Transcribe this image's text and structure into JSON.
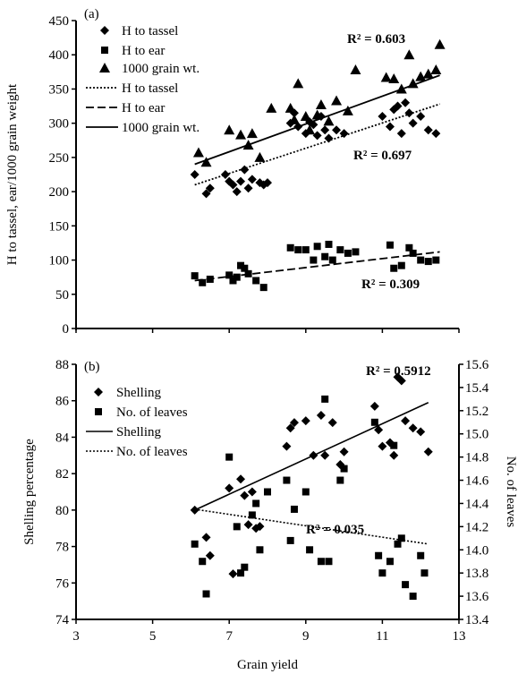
{
  "chart_data": [
    {
      "panel": "(a)",
      "type": "scatter",
      "ylabel": "H to tassel, ear/1000 grain weight",
      "xlim": [
        3,
        13
      ],
      "ylim": [
        0,
        450
      ],
      "yticks": [
        0,
        50,
        100,
        150,
        200,
        250,
        300,
        350,
        400,
        450
      ],
      "legend": [
        "H to tassel",
        "H to ear",
        "1000 grain wt.",
        "H to tassel",
        "H to ear",
        "1000 grain wt."
      ],
      "annotations": [
        "R² = 0.603",
        "R² = 0.697",
        "R² = 0.309"
      ],
      "series": [
        {
          "name": "H to tassel",
          "marker": "diamond",
          "points": [
            [
              6.1,
              225
            ],
            [
              6.4,
              197
            ],
            [
              6.5,
              205
            ],
            [
              6.9,
              225
            ],
            [
              7.0,
              215
            ],
            [
              7.1,
              210
            ],
            [
              7.2,
              200
            ],
            [
              7.3,
              215
            ],
            [
              7.4,
              232
            ],
            [
              7.5,
              205
            ],
            [
              7.6,
              218
            ],
            [
              7.8,
              213
            ],
            [
              7.9,
              210
            ],
            [
              8.0,
              213
            ],
            [
              8.6,
              300
            ],
            [
              8.7,
              315
            ],
            [
              8.8,
              295
            ],
            [
              9.0,
              285
            ],
            [
              9.1,
              302
            ],
            [
              9.2,
              298
            ],
            [
              9.3,
              282
            ],
            [
              9.4,
              310
            ],
            [
              9.5,
              290
            ],
            [
              9.6,
              278
            ],
            [
              9.8,
              290
            ],
            [
              10.0,
              285
            ],
            [
              11.0,
              310
            ],
            [
              11.2,
              295
            ],
            [
              11.3,
              320
            ],
            [
              11.4,
              325
            ],
            [
              11.5,
              285
            ],
            [
              11.6,
              330
            ],
            [
              11.7,
              315
            ],
            [
              11.8,
              300
            ],
            [
              12.0,
              310
            ],
            [
              12.2,
              290
            ],
            [
              12.4,
              285
            ]
          ],
          "trend": {
            "style": "dotted",
            "x": [
              6.1,
              12.5
            ],
            "y": [
              210,
              328
            ]
          }
        },
        {
          "name": "H to ear",
          "marker": "square",
          "points": [
            [
              6.1,
              77
            ],
            [
              6.3,
              67
            ],
            [
              6.5,
              72
            ],
            [
              7.0,
              78
            ],
            [
              7.1,
              70
            ],
            [
              7.2,
              75
            ],
            [
              7.3,
              92
            ],
            [
              7.4,
              88
            ],
            [
              7.5,
              80
            ],
            [
              7.7,
              70
            ],
            [
              7.9,
              60
            ],
            [
              8.6,
              118
            ],
            [
              8.8,
              115
            ],
            [
              9.0,
              115
            ],
            [
              9.2,
              100
            ],
            [
              9.3,
              120
            ],
            [
              9.5,
              105
            ],
            [
              9.6,
              123
            ],
            [
              9.7,
              100
            ],
            [
              9.9,
              115
            ],
            [
              10.1,
              110
            ],
            [
              10.3,
              112
            ],
            [
              11.2,
              122
            ],
            [
              11.3,
              88
            ],
            [
              11.5,
              92
            ],
            [
              11.7,
              118
            ],
            [
              11.8,
              110
            ],
            [
              12.0,
              100
            ],
            [
              12.2,
              98
            ],
            [
              12.4,
              100
            ]
          ],
          "trend": {
            "style": "dashed",
            "x": [
              6.1,
              12.5
            ],
            "y": [
              70,
              112
            ]
          }
        },
        {
          "name": "1000 grain wt.",
          "marker": "triangle",
          "points": [
            [
              6.2,
              257
            ],
            [
              6.4,
              243
            ],
            [
              7.0,
              290
            ],
            [
              7.3,
              283
            ],
            [
              7.5,
              268
            ],
            [
              7.6,
              285
            ],
            [
              7.8,
              250
            ],
            [
              8.1,
              322
            ],
            [
              8.6,
              322
            ],
            [
              8.7,
              305
            ],
            [
              8.8,
              358
            ],
            [
              9.0,
              310
            ],
            [
              9.1,
              290
            ],
            [
              9.3,
              312
            ],
            [
              9.4,
              327
            ],
            [
              9.6,
              303
            ],
            [
              9.8,
              333
            ],
            [
              10.1,
              318
            ],
            [
              10.3,
              378
            ],
            [
              11.1,
              367
            ],
            [
              11.3,
              365
            ],
            [
              11.5,
              350
            ],
            [
              11.7,
              400
            ],
            [
              11.8,
              358
            ],
            [
              12.0,
              368
            ],
            [
              12.2,
              372
            ],
            [
              12.4,
              378
            ],
            [
              12.5,
              415
            ]
          ],
          "trend": {
            "style": "solid",
            "x": [
              6.1,
              12.5
            ],
            "y": [
              240,
              370
            ]
          }
        }
      ]
    },
    {
      "panel": "(b)",
      "type": "scatter",
      "xlabel": "Grain yield",
      "ylabel": "Shelling percentage",
      "y2label": "No. of leaves",
      "xlim": [
        3,
        13
      ],
      "xticks": [
        3,
        5,
        7,
        9,
        11,
        13
      ],
      "ylim": [
        74,
        88
      ],
      "yticks": [
        74,
        76,
        78,
        80,
        82,
        84,
        86,
        88
      ],
      "y2lim": [
        13.4,
        15.6
      ],
      "y2ticks": [
        13.4,
        13.6,
        13.8,
        14.0,
        14.2,
        14.4,
        14.6,
        14.8,
        15.0,
        15.2,
        15.4,
        15.6
      ],
      "legend": [
        "Shelling",
        "No. of leaves",
        "Shelling",
        "No. of leaves"
      ],
      "annotations": [
        "R² = 0.5912",
        "R² = 0.035"
      ],
      "series": [
        {
          "name": "Shelling",
          "marker": "diamond",
          "axis": "left",
          "points": [
            [
              6.1,
              80.0
            ],
            [
              6.4,
              78.5
            ],
            [
              6.5,
              77.5
            ],
            [
              7.0,
              81.2
            ],
            [
              7.1,
              76.5
            ],
            [
              7.3,
              81.7
            ],
            [
              7.4,
              80.8
            ],
            [
              7.5,
              79.2
            ],
            [
              7.6,
              81.0
            ],
            [
              7.7,
              79.0
            ],
            [
              7.8,
              79.1
            ],
            [
              8.5,
              83.5
            ],
            [
              8.6,
              84.5
            ],
            [
              8.7,
              84.8
            ],
            [
              9.0,
              84.9
            ],
            [
              9.2,
              83.0
            ],
            [
              9.4,
              85.2
            ],
            [
              9.5,
              83.0
            ],
            [
              9.7,
              84.8
            ],
            [
              9.9,
              82.5
            ],
            [
              10.0,
              83.2
            ],
            [
              10.8,
              85.7
            ],
            [
              10.9,
              84.4
            ],
            [
              11.0,
              83.5
            ],
            [
              11.2,
              83.7
            ],
            [
              11.3,
              83.0
            ],
            [
              11.4,
              87.3
            ],
            [
              11.5,
              87.1
            ],
            [
              11.6,
              84.9
            ],
            [
              11.8,
              84.5
            ],
            [
              12.0,
              84.3
            ],
            [
              12.2,
              83.2
            ]
          ],
          "trend": {
            "style": "solid",
            "x": [
              6.1,
              12.2
            ],
            "y": [
              80.0,
              85.9
            ]
          }
        },
        {
          "name": "No. of leaves",
          "marker": "square",
          "axis": "right",
          "points": [
            [
              6.1,
              14.05
            ],
            [
              6.3,
              13.9
            ],
            [
              6.4,
              13.62
            ],
            [
              7.0,
              14.8
            ],
            [
              7.2,
              14.2
            ],
            [
              7.3,
              13.8
            ],
            [
              7.4,
              13.85
            ],
            [
              7.6,
              14.3
            ],
            [
              7.7,
              14.4
            ],
            [
              7.8,
              14.0
            ],
            [
              8.0,
              14.5
            ],
            [
              8.5,
              14.6
            ],
            [
              8.6,
              14.08
            ],
            [
              8.7,
              14.35
            ],
            [
              9.0,
              14.5
            ],
            [
              9.1,
              14.0
            ],
            [
              9.4,
              13.9
            ],
            [
              9.5,
              15.3
            ],
            [
              9.6,
              13.9
            ],
            [
              9.9,
              14.6
            ],
            [
              10.0,
              14.7
            ],
            [
              10.8,
              15.1
            ],
            [
              10.9,
              13.95
            ],
            [
              11.0,
              13.8
            ],
            [
              11.2,
              13.9
            ],
            [
              11.3,
              14.9
            ],
            [
              11.4,
              14.05
            ],
            [
              11.5,
              14.1
            ],
            [
              11.6,
              13.7
            ],
            [
              11.8,
              13.6
            ],
            [
              12.0,
              13.95
            ],
            [
              12.1,
              13.8
            ]
          ],
          "trend": {
            "style": "dotted",
            "x": [
              6.1,
              12.2
            ],
            "y": [
              14.35,
              14.05
            ]
          }
        }
      ]
    }
  ]
}
